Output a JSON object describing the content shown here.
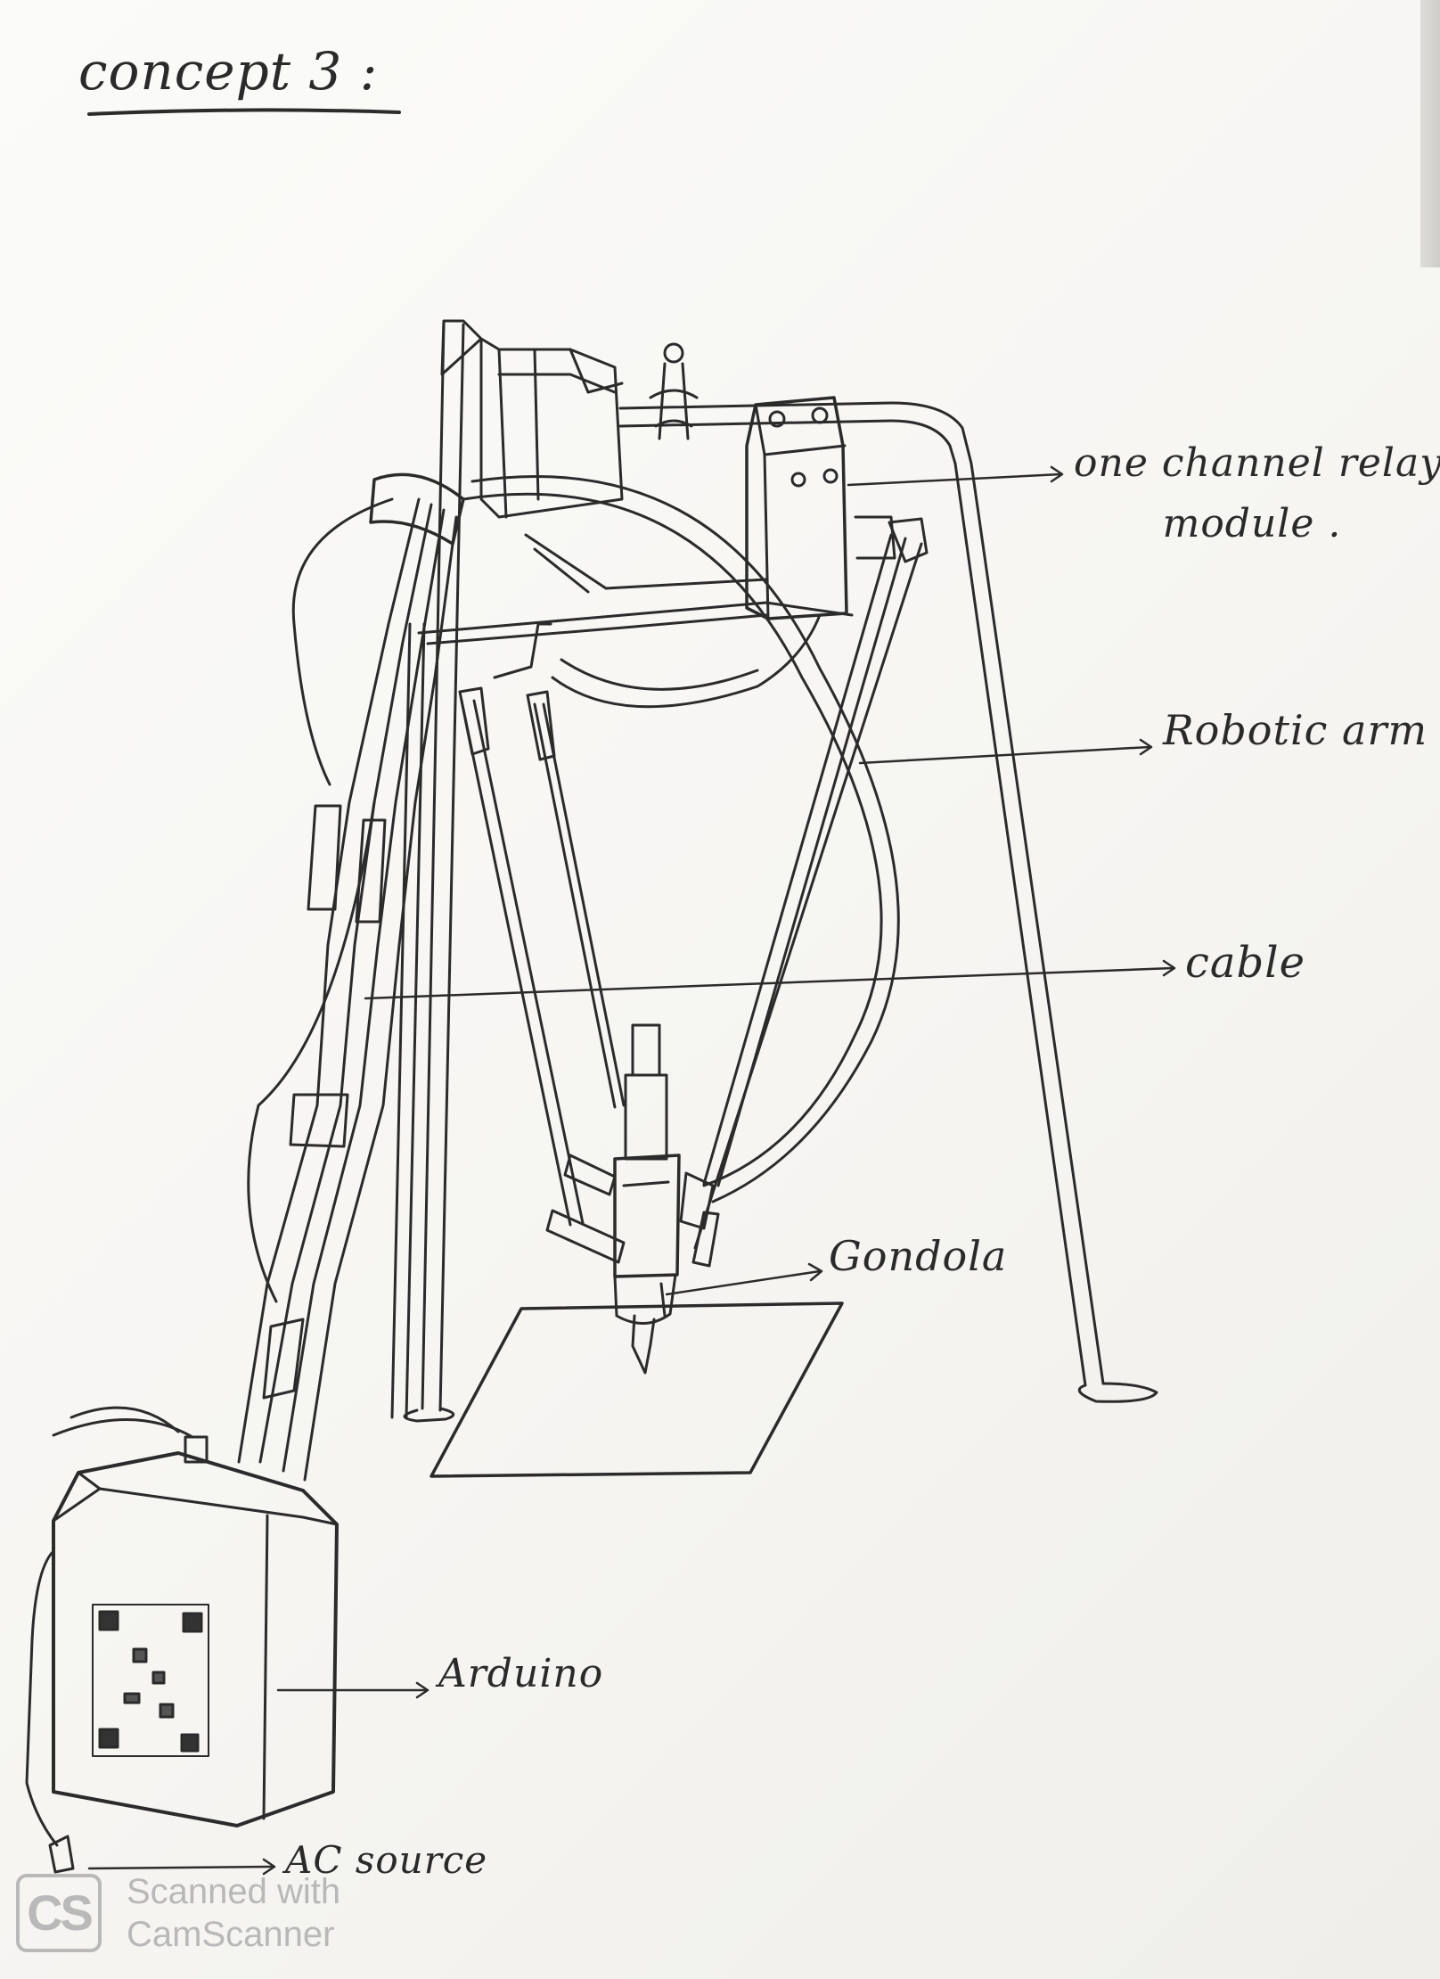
{
  "title": "concept 3 :",
  "labels": {
    "relay": [
      "one channel relay",
      "module ."
    ],
    "robotic_arm": "Robotic arm",
    "cable": "cable",
    "gondola": "Gondola",
    "arduino": "Arduino",
    "ac_source": "AC source"
  },
  "watermark": {
    "logo": "CS",
    "line1": "Scanned with",
    "line2": "CamScanner"
  },
  "colors": {
    "paper": "#f7f6f3",
    "pencil": "#2a2a2a",
    "watermark": "#b8b8b8"
  }
}
